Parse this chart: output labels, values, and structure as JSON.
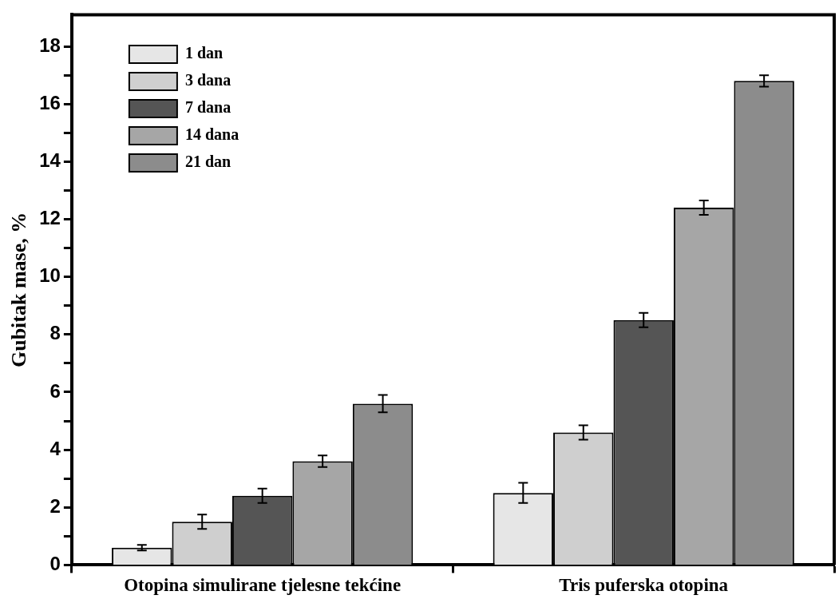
{
  "chart_data": {
    "type": "bar",
    "ylabel": "Gubitak mase, %",
    "categories": [
      "Otopina simulirane tjelesne tekćine",
      "Tris puferska otopina"
    ],
    "series": [
      {
        "name": "1 dan",
        "color": "#e6e6e6",
        "values": [
          0.6,
          2.5
        ],
        "errors": [
          0.1,
          0.35
        ]
      },
      {
        "name": "3 dana",
        "color": "#cfcfcf",
        "values": [
          1.5,
          4.6
        ],
        "errors": [
          0.25,
          0.25
        ]
      },
      {
        "name": "7 dana",
        "color": "#555555",
        "values": [
          2.4,
          8.5
        ],
        "errors": [
          0.25,
          0.25
        ]
      },
      {
        "name": "14 dana",
        "color": "#a6a6a6",
        "values": [
          3.6,
          12.4
        ],
        "errors": [
          0.2,
          0.25
        ]
      },
      {
        "name": "21 dan",
        "color": "#8c8c8c",
        "values": [
          5.6,
          16.8
        ],
        "errors": [
          0.3,
          0.2
        ]
      }
    ],
    "ylim": [
      0,
      19.1
    ],
    "yticks": [
      0,
      {
        "value": 1,
        "label": null
      },
      2,
      {
        "value": 3,
        "label": null
      },
      4,
      {
        "value": 5,
        "label": null
      },
      6,
      {
        "value": 7,
        "label": null
      },
      8,
      {
        "value": 9,
        "label": null
      },
      10,
      {
        "value": 11,
        "label": null
      },
      12,
      {
        "value": 13,
        "label": null
      },
      14,
      {
        "value": 15,
        "label": null
      },
      16,
      {
        "value": 17,
        "label": null
      },
      18
    ],
    "grid": false,
    "legend": "top left"
  }
}
